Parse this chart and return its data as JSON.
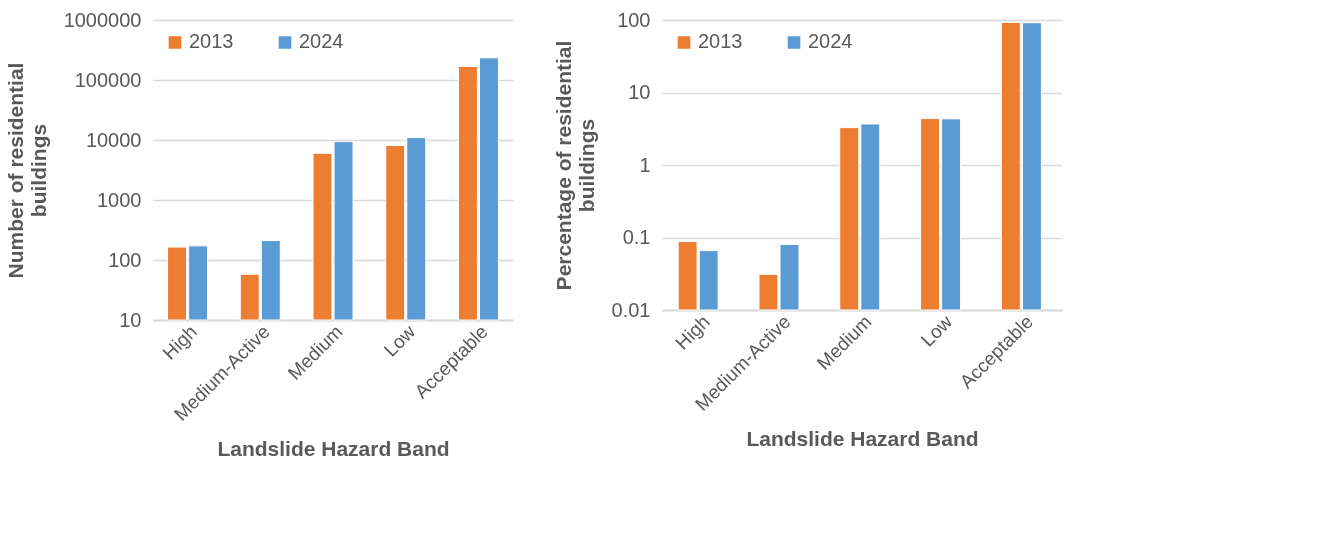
{
  "chart_data": [
    {
      "type": "bar",
      "categories": [
        "High",
        "Medium-Active",
        "Medium",
        "Low",
        "Acceptable"
      ],
      "xlabel": "Landslide Hazard Band",
      "ylabel": "Number of residential buildings",
      "log": true,
      "ylim": [
        10,
        1000000
      ],
      "yticks": [
        10,
        100,
        1000,
        10000,
        100000,
        1000000
      ],
      "grid": "y",
      "legend": "top left",
      "series": [
        {
          "name": "2013",
          "color": "#ed7d31",
          "values": [
            164,
            58,
            6000,
            8100,
            168000
          ]
        },
        {
          "name": "2024",
          "color": "#5b9bd5",
          "values": [
            172,
            211,
            9400,
            11000,
            234000
          ]
        }
      ]
    },
    {
      "type": "bar",
      "categories": [
        "High",
        "Medium-Active",
        "Medium",
        "Low",
        "Acceptable"
      ],
      "xlabel": "Landslide Hazard Band",
      "ylabel": "Percentage of residential buildings",
      "log": true,
      "ylim": [
        0.01,
        100
      ],
      "yticks": [
        0.01,
        0.1,
        1,
        10,
        100
      ],
      "grid": "y",
      "legend": "top left",
      "series": [
        {
          "name": "2013",
          "color": "#ed7d31",
          "values": [
            0.088,
            0.031,
            3.28,
            4.37,
            92.7
          ]
        },
        {
          "name": "2024",
          "color": "#5b9bd5",
          "values": [
            0.066,
            0.08,
            3.68,
            4.33,
            91.8
          ]
        }
      ]
    }
  ]
}
